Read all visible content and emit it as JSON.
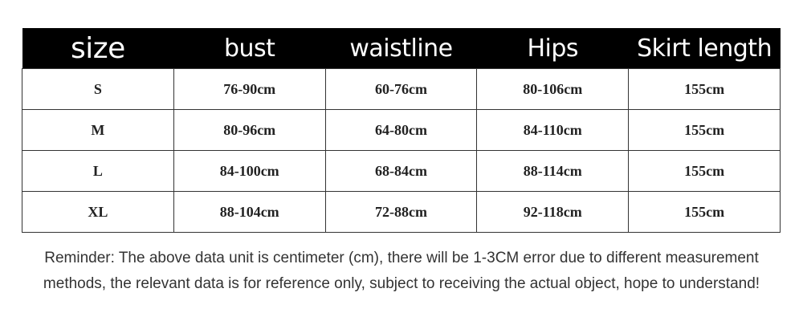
{
  "table": {
    "header": [
      "size",
      "bust",
      "waistline",
      "Hips",
      "Skirt length"
    ],
    "rows": [
      [
        "S",
        "76-90cm",
        "60-76cm",
        "80-106cm",
        "155cm"
      ],
      [
        "M",
        "80-96cm",
        "64-80cm",
        "84-110cm",
        "155cm"
      ],
      [
        "L",
        "84-100cm",
        "68-84cm",
        "88-114cm",
        "155cm"
      ],
      [
        "XL",
        "88-104cm",
        "72-88cm",
        "92-118cm",
        "155cm"
      ]
    ]
  },
  "reminder": [
    "Reminder: The above data unit is centimeter (cm), there will be 1-3CM error due to different measurement",
    "methods, the relevant data is for reference only, subject to receiving the actual object, hope to understand!"
  ]
}
